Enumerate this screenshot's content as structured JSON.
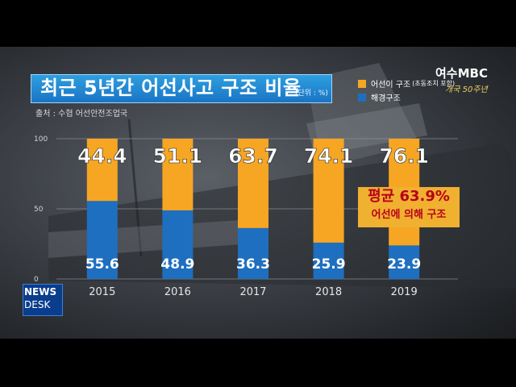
{
  "title": "최근 5년간 어선사고 구조 비율",
  "unit": "(단위 : %)",
  "source": "출처 : 수협 어선안전조업국",
  "legend": {
    "fishing_label": "어선이 구조",
    "fishing_sub": "(초동조치 포함)",
    "coastguard_label": "해경구조"
  },
  "logo": {
    "main": "여수MBC",
    "sub": "개국 50주년"
  },
  "callout": {
    "line1": "평균 63.9%",
    "line2": "어선에 의해 구조"
  },
  "news": {
    "line1": "NEWS",
    "line2": "DESK"
  },
  "colors": {
    "fishing": "#f6a623",
    "coastguard": "#1e6fc0",
    "title_bg": "#2489d6",
    "callout_text": "#b8001a"
  },
  "chart_data": {
    "type": "bar",
    "stacked": true,
    "categories": [
      "2015",
      "2016",
      "2017",
      "2018",
      "2019"
    ],
    "series": [
      {
        "name": "해경구조",
        "values": [
          55.6,
          48.9,
          36.3,
          25.9,
          23.9
        ]
      },
      {
        "name": "어선이 구조",
        "values": [
          44.4,
          51.1,
          63.7,
          74.1,
          76.1
        ]
      }
    ],
    "ylim": [
      0,
      100
    ],
    "yticks": [
      0,
      50,
      100
    ],
    "grid": true,
    "legend_position": "top-right"
  }
}
